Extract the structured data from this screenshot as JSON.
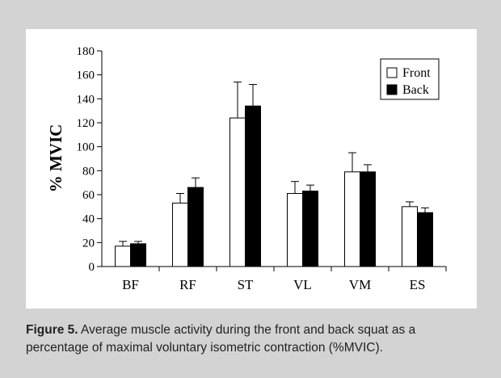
{
  "figure_caption": {
    "label": "Figure 5.",
    "text": " Average muscle activity during the front and back squat as a percentage of maximal voluntary isometric contraction (%MVIC)."
  },
  "chart_data": {
    "type": "bar",
    "title": "",
    "xlabel": "",
    "ylabel": "% MVIC",
    "ylim": [
      0,
      180
    ],
    "yticks": [
      0,
      20,
      40,
      60,
      80,
      100,
      120,
      140,
      160,
      180
    ],
    "categories": [
      "BF",
      "RF",
      "ST",
      "VL",
      "VM",
      "ES"
    ],
    "series": [
      {
        "name": "Front",
        "color": "#ffffff",
        "values": [
          17,
          53,
          124,
          61,
          79,
          50
        ],
        "errors": [
          4,
          8,
          30,
          10,
          16,
          4
        ]
      },
      {
        "name": "Back",
        "color": "#000000",
        "values": [
          19,
          66,
          134,
          63,
          79,
          45
        ],
        "errors": [
          2,
          8,
          18,
          5,
          6,
          4
        ]
      }
    ],
    "legend_position": "top-right"
  }
}
